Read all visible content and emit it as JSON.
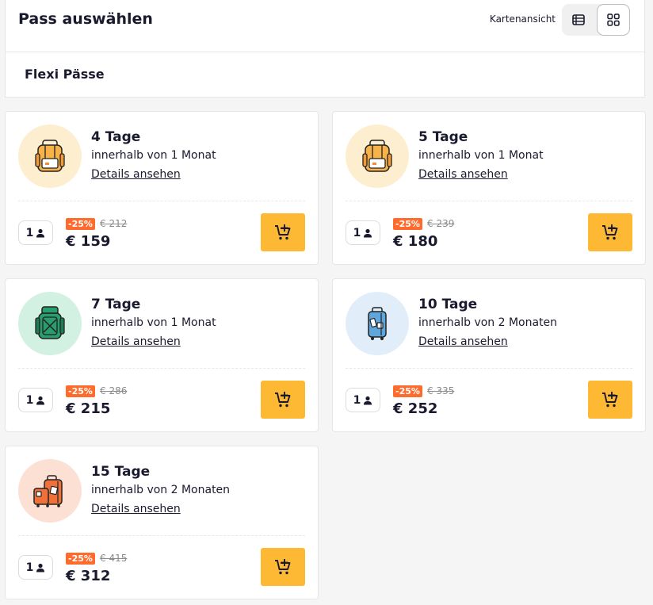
{
  "header": {
    "title": "Pass auswählen",
    "view_label": "Kartenansicht",
    "view_list_icon": "list-view-icon",
    "view_grid_icon": "grid-view-icon"
  },
  "section": {
    "title": "Flexi Pässe"
  },
  "colors": {
    "accent": "#fdb934",
    "discount": "#ff6b2c"
  },
  "passes": [
    {
      "title": "4 Tage",
      "subtitle": "innerhalb von 1 Monat",
      "link": "Details ansehen",
      "pax": "1",
      "discount": "-25%",
      "old_price": "€ 212",
      "price": "€ 159",
      "icon": "backpack-icon",
      "icon_bg": "#fdeed0"
    },
    {
      "title": "5 Tage",
      "subtitle": "innerhalb von 1 Monat",
      "link": "Details ansehen",
      "pax": "1",
      "discount": "-25%",
      "old_price": "€ 239",
      "price": "€ 180",
      "icon": "backpack-icon",
      "icon_bg": "#fdeed0"
    },
    {
      "title": "7 Tage",
      "subtitle": "innerhalb von 1 Monat",
      "link": "Details ansehen",
      "pax": "1",
      "discount": "-25%",
      "old_price": "€ 286",
      "price": "€ 215",
      "icon": "hiking-backpack-icon",
      "icon_bg": "#d3f1e3"
    },
    {
      "title": "10 Tage",
      "subtitle": "innerhalb von 2 Monaten",
      "link": "Details ansehen",
      "pax": "1",
      "discount": "-25%",
      "old_price": "€ 335",
      "price": "€ 252",
      "icon": "suitcase-icon",
      "icon_bg": "#e1eef9"
    },
    {
      "title": "15 Tage",
      "subtitle": "innerhalb von 2 Monaten",
      "link": "Details ansehen",
      "pax": "1",
      "discount": "-25%",
      "old_price": "€ 415",
      "price": "€ 312",
      "icon": "luggage-icon",
      "icon_bg": "#fde0d4"
    }
  ]
}
